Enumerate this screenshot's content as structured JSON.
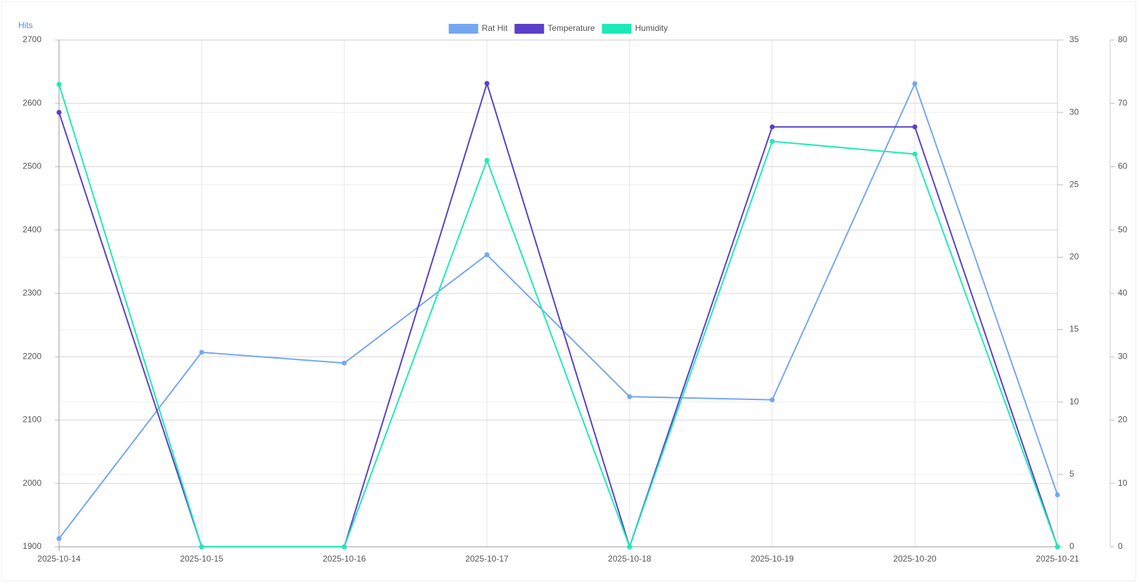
{
  "chart_data": {
    "type": "line",
    "y_label": "Hits",
    "categories": [
      "2025-10-14",
      "2025-10-15",
      "2025-10-16",
      "2025-10-17",
      "2025-10-18",
      "2025-10-19",
      "2025-10-20",
      "2025-10-21"
    ],
    "series": [
      {
        "name": "Rat Hit",
        "color": "#74a7f1",
        "axis": "y",
        "values": [
          1913,
          2207,
          2190,
          2361,
          2137,
          2132,
          2631,
          1982
        ]
      },
      {
        "name": "Temperature",
        "color": "#5b3fc9",
        "axis": "y2",
        "values": [
          30,
          0,
          0,
          32,
          0,
          29,
          29,
          0
        ]
      },
      {
        "name": "Humidity",
        "color": "#1deab8",
        "axis": "y3",
        "values": [
          73,
          0,
          0,
          61,
          0,
          64,
          62,
          0
        ]
      }
    ],
    "ylim": [
      1900,
      2700
    ],
    "yticks": [
      1900,
      2000,
      2100,
      2200,
      2300,
      2400,
      2500,
      2600,
      2700
    ],
    "y2lim": [
      0,
      35
    ],
    "y2ticks": [
      0,
      5,
      10,
      15,
      20,
      25,
      30,
      35
    ],
    "y3lim": [
      0,
      80
    ],
    "y3ticks": [
      0,
      10,
      20,
      30,
      40,
      50,
      60,
      70,
      80
    ],
    "grid": true,
    "legend": "top"
  }
}
